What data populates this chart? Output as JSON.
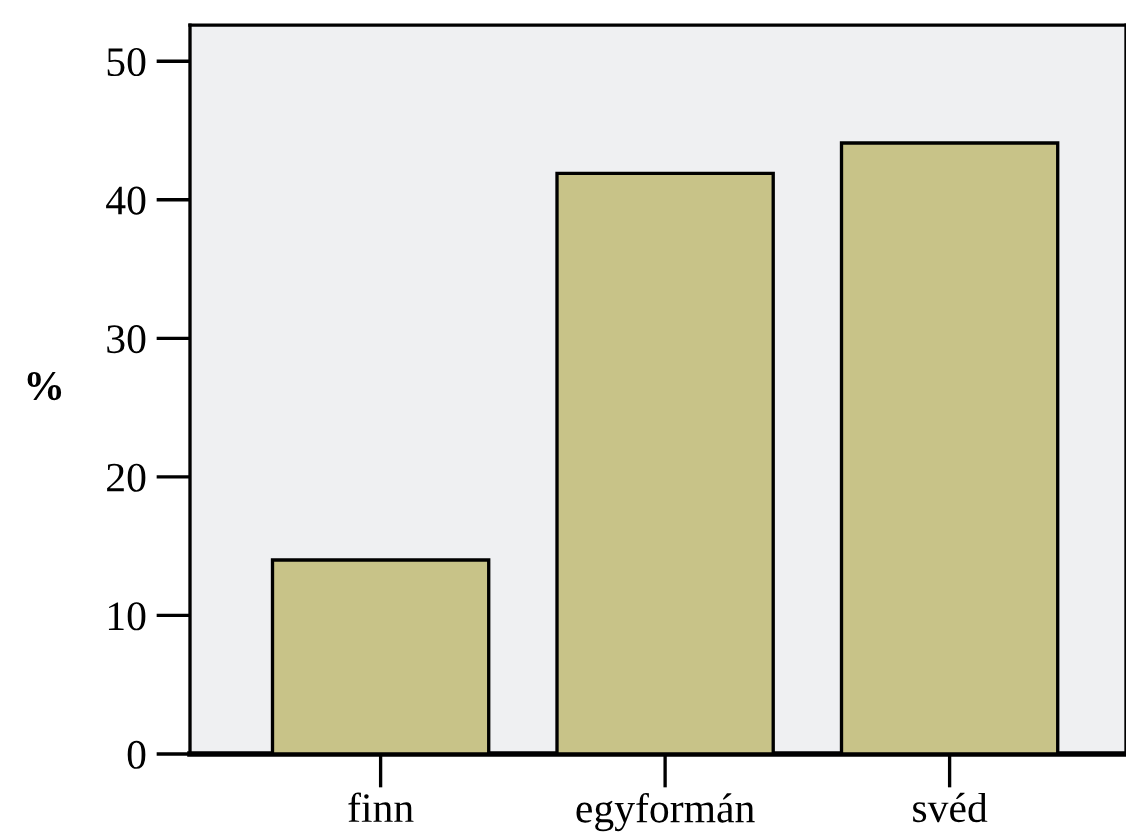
{
  "chart_data": {
    "type": "bar",
    "ylabel": "%",
    "categories": [
      "finn",
      "egyformán",
      "svéd"
    ],
    "values": [
      14.0,
      41.9,
      44.1
    ],
    "color": "#c8c388",
    "ylim": [
      0,
      52.6
    ],
    "yticks": [
      0,
      10,
      20,
      30,
      40,
      50
    ],
    "grid": false,
    "legend": false
  }
}
